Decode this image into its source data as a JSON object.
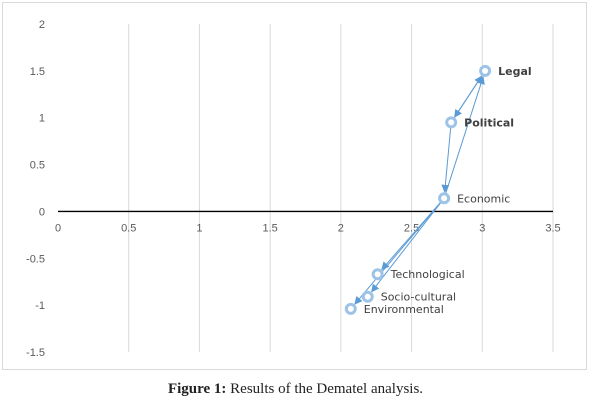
{
  "caption": {
    "prefix": "Figure 1:",
    "text": " Results of the Dematel analysis."
  },
  "chart_data": {
    "type": "scatter",
    "title": "",
    "xlabel": "",
    "ylabel": "",
    "xlim": [
      0,
      3.5
    ],
    "ylim": [
      -1.5,
      2
    ],
    "x_ticks": [
      "0",
      "0.5",
      "1",
      "1.5",
      "2",
      "2.5",
      "3",
      "3.5"
    ],
    "y_ticks": [
      "2",
      "1.5",
      "1",
      "0.5",
      "0",
      "-0.5",
      "-1",
      "-1.5"
    ],
    "grid": "vertical",
    "marker_color": "#9dc3e6",
    "arrow_color": "#5b9bd5",
    "points": [
      {
        "name": "Legal",
        "x": 3.02,
        "y": 1.5,
        "bold": true
      },
      {
        "name": "Political",
        "x": 2.78,
        "y": 0.95,
        "bold": true
      },
      {
        "name": "Economic",
        "x": 2.73,
        "y": 0.14,
        "bold": false
      },
      {
        "name": "Technological",
        "x": 2.26,
        "y": -0.67,
        "bold": false
      },
      {
        "name": "Socio-cultural",
        "x": 2.19,
        "y": -0.91,
        "bold": false
      },
      {
        "name": "Environmental",
        "x": 2.07,
        "y": -1.04,
        "bold": false
      }
    ],
    "arrows": [
      {
        "from": "Political",
        "to": "Legal"
      },
      {
        "from": "Economic",
        "to": "Legal"
      },
      {
        "from": "Legal",
        "to": "Political"
      },
      {
        "from": "Political",
        "to": "Economic"
      },
      {
        "from": "Economic",
        "to": "Technological"
      },
      {
        "from": "Economic",
        "to": "Socio-cultural"
      },
      {
        "from": "Economic",
        "to": "Environmental"
      }
    ]
  }
}
